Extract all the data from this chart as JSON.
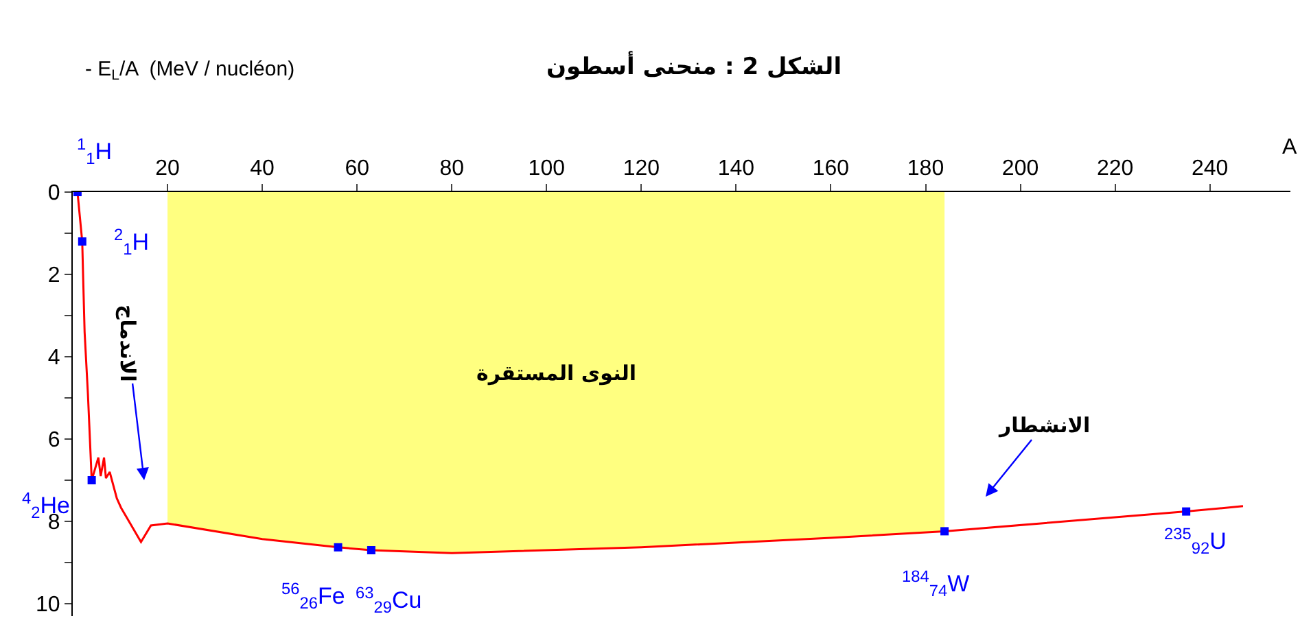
{
  "chart_data": {
    "type": "line",
    "title": "الشكل 2 : منحنى أسطون",
    "xlabel": "A",
    "ylabel": "- E$_{L}$/A  (MeV / nucléon)",
    "series": [
      {
        "color": "#ff0000",
        "marker": "none",
        "x": [
          1,
          2,
          2.2,
          2.5,
          3.2,
          4,
          5.4,
          5.9,
          6.6,
          7,
          7.8,
          9.3,
          10.2,
          14.4,
          16.5,
          20,
          40,
          56,
          63,
          80,
          120,
          160,
          184,
          235,
          247
        ],
        "values": [
          0,
          1.2,
          2.1,
          3.4,
          4.9,
          7.0,
          6.45,
          6.9,
          6.45,
          6.95,
          6.8,
          7.44,
          7.67,
          8.5,
          8.1,
          8.05,
          8.43,
          8.63,
          8.7,
          8.77,
          8.63,
          8.4,
          8.24,
          7.76,
          7.63
        ]
      },
      {
        "type": "scatter",
        "color": "#0000ff",
        "marker": "square",
        "x": [
          1,
          2,
          4,
          56,
          63,
          184,
          235
        ],
        "values": [
          0,
          1.2,
          7.0,
          8.63,
          8.7,
          8.24,
          7.76
        ]
      }
    ],
    "xlim": [
      0,
      257
    ],
    "xticks": [
      20,
      40,
      60,
      80,
      100,
      120,
      140,
      160,
      180,
      200,
      220,
      240
    ],
    "ylim": [
      10.3,
      0
    ],
    "yticks": [
      0,
      {
        "value": 1,
        "label": null
      },
      2,
      {
        "value": 3,
        "label": null
      },
      4,
      {
        "value": 5,
        "label": null
      },
      6,
      {
        "value": 7,
        "label": null
      },
      8,
      {
        "value": 9,
        "label": null
      },
      10
    ],
    "bands": [
      {
        "axis": "x",
        "from": 20,
        "to": 184,
        "label": "النوى المستقرة",
        "color": "#ffff80"
      }
    ],
    "annotations": [
      {
        "text": "$^{1}$$_{1}$H",
        "x": 1,
        "y": 0
      },
      {
        "text": "$^{2}$$_{1}$H",
        "x": 2,
        "y": 1.2
      },
      {
        "text": "$^{4}$$_{2}$He",
        "x": 4,
        "y": 7.0
      },
      {
        "text": "$^{56}$$_{26}$Fe",
        "x": 56,
        "y": 8.63
      },
      {
        "text": "$^{63}$$_{29}$Cu",
        "x": 63,
        "y": 8.7
      },
      {
        "text": "$^{184}$$_{74}$W",
        "x": 184,
        "y": 8.24
      },
      {
        "text": "$^{235}$$_{92}$U",
        "x": 235,
        "y": 7.76
      },
      "الاندماج",
      "الانشطار"
    ],
    "grid": false
  }
}
